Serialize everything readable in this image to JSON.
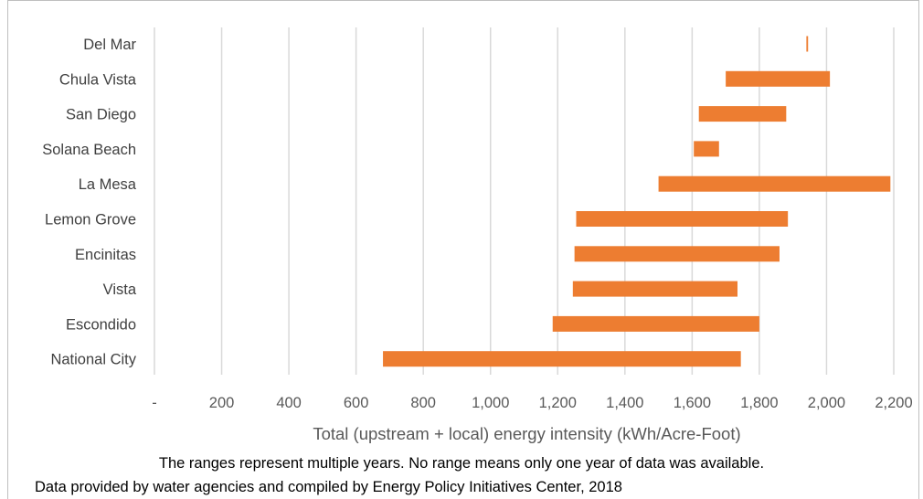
{
  "chart_data": {
    "type": "bar",
    "orientation": "horizontal-range",
    "categories": [
      "Del Mar",
      "Chula Vista",
      "San Diego",
      "Solana Beach",
      "La Mesa",
      "Lemon Grove",
      "Encinitas",
      "Vista",
      "Escondido",
      "National City"
    ],
    "ranges": [
      [
        1940,
        1945
      ],
      [
        1700,
        2010
      ],
      [
        1620,
        1880
      ],
      [
        1605,
        1680
      ],
      [
        1500,
        2190
      ],
      [
        1255,
        1885
      ],
      [
        1250,
        1860
      ],
      [
        1245,
        1735
      ],
      [
        1185,
        1800
      ],
      [
        680,
        1745
      ]
    ],
    "xlim": [
      0,
      2200
    ],
    "xticks": [
      0,
      200,
      400,
      600,
      800,
      1000,
      1200,
      1400,
      1600,
      1800,
      2000,
      2200
    ],
    "xtick_labels": [
      "-",
      "200",
      "400",
      "600",
      "800",
      "1,000",
      "1,200",
      "1,400",
      "1,600",
      "1,800",
      "2,000",
      "2,200"
    ],
    "xlabel": "Total (upstream + local) energy intensity (kWh/Acre-Foot)",
    "ylabel": "",
    "title": "",
    "grid": "vertical",
    "bar_color": "#ed7d31",
    "grid_color": "#d9d9d9",
    "legend": "none"
  },
  "notes": {
    "line1": "The ranges represent multiple  years. No range means only one year of data was available.",
    "line2": "Data provided by water agencies and compiled by Energy Policy Initiatives Center, 2018"
  }
}
